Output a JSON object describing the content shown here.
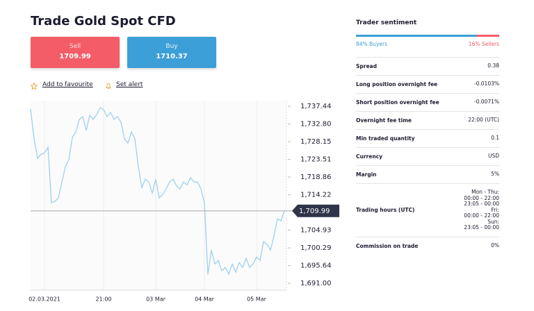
{
  "title": "Trade Gold Spot CFD",
  "sell": {
    "label": "Sell",
    "price": "1709.99"
  },
  "buy": {
    "label": "Buy",
    "price": "1710.37"
  },
  "links": [
    "Add to favourite",
    "Set alert"
  ],
  "chart_data": {
    "type": "line",
    "color": "#9fd0ec",
    "categories": [
      null,
      null,
      null,
      null,
      "02.03.2021",
      null,
      null,
      null,
      null,
      null,
      null,
      null,
      null,
      null,
      null,
      null,
      null,
      null,
      null,
      null,
      null,
      "21:00",
      null,
      null,
      null,
      null,
      null,
      null,
      null,
      null,
      null,
      null,
      null,
      null,
      null,
      null,
      "03 Mar",
      null,
      null,
      null,
      null,
      null,
      null,
      null,
      null,
      null,
      null,
      null,
      null,
      null,
      "04 Mar",
      null,
      null,
      null,
      null,
      null,
      null,
      null,
      null,
      null,
      null,
      null,
      null,
      null,
      null,
      "05 Mar",
      null,
      null,
      null,
      null,
      null,
      null,
      null,
      null
    ],
    "values": [
      1736.71,
      1728.88,
      1723.78,
      1724.87,
      1725.24,
      1726.69,
      1712.12,
      1712.49,
      1713.4,
      1717.59,
      1721.59,
      1723.41,
      1729.24,
      1730.7,
      1733.98,
      1734.71,
      1731.06,
      1735.07,
      1733.98,
      1735.25,
      1737.08,
      1736.53,
      1734.71,
      1735.8,
      1733.98,
      1734.71,
      1733.25,
      1728.88,
      1727.79,
      1730.7,
      1728.88,
      1721.59,
      1716.13,
      1718.31,
      1717.59,
      1714.67,
      1718.31,
      1713.4,
      1714.31,
      1715.76,
      1717.59,
      1718.31,
      1716.49,
      1715.76,
      1717.59,
      1716.86,
      1718.68,
      1717.59,
      1717.59,
      1715.76,
      1712.12,
      1693.36,
      1699.73,
      1696.09,
      1697.0,
      1694.27,
      1695.18,
      1693.36,
      1696.09,
      1693.91,
      1696.46,
      1695.18,
      1697.55,
      1695.18,
      1696.09,
      1697.91,
      1697.0,
      1701.92,
      1701.19,
      1699.73,
      1703.38,
      1707.93,
      1707.39,
      1709.99
    ],
    "ylim": [
      1689.2,
      1738.9
    ],
    "yticks": [
      {
        "value": 1737.44,
        "label": "1,737.44"
      },
      {
        "value": 1732.8,
        "label": "1,732.80"
      },
      {
        "value": 1728.15,
        "label": "1,728.15"
      },
      {
        "value": 1723.51,
        "label": "1,723.51"
      },
      {
        "value": 1718.86,
        "label": "1,718.86"
      },
      {
        "value": 1714.22,
        "label": "1,714.22"
      },
      {
        "value": 1704.93,
        "label": "1,704.93"
      },
      {
        "value": 1700.29,
        "label": "1,700.29"
      },
      {
        "value": 1695.64,
        "label": "1,695.64"
      },
      {
        "value": 1691,
        "label": "1,691.00"
      }
    ],
    "current": {
      "value": 1709.99,
      "label": "1,709.99"
    },
    "grid": true
  },
  "sentiment": {
    "title": "Trader sentiment",
    "buyers": {
      "value": 84,
      "label": "84% Buyers"
    },
    "sellers": {
      "value": 16,
      "label": "16% Sellers"
    }
  },
  "rows": [
    {
      "label": "Spread",
      "value": [
        "0.38"
      ]
    },
    {
      "label": "Long position overnight fee",
      "value": [
        "-0.0103%"
      ]
    },
    {
      "label": "Short position overnight fee",
      "value": [
        "-0.0071%"
      ]
    },
    {
      "label": "Overnight fee time",
      "value": [
        "22:00 (UTC)"
      ]
    },
    {
      "label": "Min traded quantity",
      "value": [
        "0.1"
      ]
    },
    {
      "label": "Currency",
      "value": [
        "USD"
      ]
    },
    {
      "label": "Margin",
      "value": [
        "5%"
      ]
    },
    {
      "label": "Trading hours (UTC)",
      "value": [
        "Mon - Thu:",
        "00:00 - 22:00",
        "23:05 - 00:00",
        "Fri:",
        "00:00 - 22:00",
        "Sun:",
        "23:05 - 00:00"
      ]
    },
    {
      "label": "Commission on trade",
      "value": [
        "0%"
      ]
    }
  ]
}
